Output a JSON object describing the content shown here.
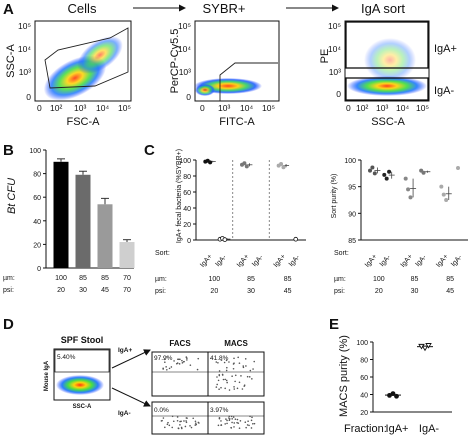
{
  "panel_labels": [
    "A",
    "B",
    "C",
    "D",
    "E"
  ],
  "panel_a": {
    "plots": [
      {
        "title": "Cells",
        "xlabel": "FSC-A",
        "ylabel": "SSC-A",
        "xticks": [
          "0",
          "10²",
          "10³",
          "10⁴",
          "10⁵"
        ],
        "yticks": [
          "0",
          "10³",
          "10⁴",
          "10⁵"
        ]
      },
      {
        "title": "SYBR+",
        "xlabel": "FITC-A",
        "ylabel": "PerCP-Cy5.5",
        "xticks": [
          "0",
          "10³",
          "10⁴",
          "10⁵"
        ],
        "yticks": [
          "0",
          "10³",
          "10⁴",
          "10⁵"
        ]
      },
      {
        "title": "IgA sort",
        "xlabel": "SSC-A",
        "ylabel": "PE",
        "xticks": [
          "0",
          "10²",
          "10³",
          "10⁴",
          "10⁵"
        ],
        "yticks": [
          "0",
          "10³",
          "10⁴",
          "10⁵"
        ],
        "gates": [
          "IgA+",
          "IgA-"
        ]
      }
    ]
  },
  "chart_data": [
    {
      "panel": "B",
      "type": "bar",
      "ylabel": "Bt CFU",
      "ylim": [
        0,
        100
      ],
      "yticks": [
        0,
        20,
        40,
        60,
        80,
        100
      ],
      "categories": [
        "1",
        "2",
        "3",
        "4"
      ],
      "row_labels": [
        "µm:",
        "psi:"
      ],
      "um": [
        "100",
        "85",
        "85",
        "70"
      ],
      "psi": [
        "20",
        "30",
        "45",
        "70"
      ],
      "values": [
        90,
        79,
        54,
        22
      ],
      "errors": [
        2.5,
        3,
        5,
        2
      ],
      "colors": [
        "#000000",
        "#6b6b6b",
        "#9a9a9a",
        "#cfcfcf"
      ]
    },
    {
      "panel": "C-left",
      "type": "scatter",
      "ylabel": "IgA+ fecal bacteria (%SYBR+)",
      "ylim": [
        0,
        100
      ],
      "yticks": [
        0,
        20,
        40,
        60,
        80,
        100
      ],
      "sort_label": "Sort:",
      "row_labels": [
        "µm:",
        "psi:"
      ],
      "groups": [
        {
          "um": "100",
          "psi": "20",
          "points": [
            {
              "sort": "IgA+",
              "values": [
                98,
                99,
                97
              ]
            },
            {
              "sort": "IgA-",
              "values": [
                1,
                2,
                0.5
              ]
            }
          ]
        },
        {
          "um": "85",
          "psi": "30",
          "points": [
            {
              "sort": "IgA+",
              "values": [
                94,
                96,
                92
              ]
            }
          ]
        },
        {
          "um": "85",
          "psi": "45",
          "points": [
            {
              "sort": "IgA+",
              "values": [
                93,
                95,
                91
              ]
            },
            {
              "sort": "IgA-",
              "values": [
                1
              ]
            }
          ]
        }
      ]
    },
    {
      "panel": "C-right",
      "type": "scatter",
      "ylabel": "Sort purity (%)",
      "ylim": [
        85,
        100
      ],
      "yticks": [
        85,
        90,
        95,
        100
      ],
      "sort_label": "Sort:",
      "row_labels": [
        "µm:",
        "psi:"
      ],
      "groups": [
        {
          "um": "100",
          "psi": "20",
          "points": [
            {
              "sort": "IgA+",
              "values": [
                98,
                98.6,
                97.5
              ],
              "color": "#555555"
            },
            {
              "sort": "IgA-",
              "values": [
                97.2,
                96.5,
                97.8
              ],
              "color": "#222222"
            }
          ]
        },
        {
          "um": "85",
          "psi": "30",
          "points": [
            {
              "sort": "IgA+",
              "values": [
                96.5,
                94.5,
                93
              ],
              "color": "#888888"
            },
            {
              "sort": "IgA-",
              "values": [
                98,
                97.6
              ],
              "color": "#777777"
            }
          ]
        },
        {
          "um": "85",
          "psi": "45",
          "points": [
            {
              "sort": "IgA+",
              "values": [
                95,
                93.5,
                92.5
              ],
              "color": "#aaaaaa"
            },
            {
              "sort": "IgA-",
              "values": [
                98.5
              ],
              "color": "#aaaaaa"
            }
          ]
        }
      ]
    },
    {
      "panel": "E",
      "type": "scatter",
      "ylabel": "MACS purity (%)",
      "ylim": [
        20,
        100
      ],
      "yticks": [
        20,
        40,
        60,
        80,
        100
      ],
      "xlabel": "Fraction:",
      "categories": [
        "IgA+",
        "IgA-"
      ],
      "values": [
        [
          39,
          41,
          38
        ],
        [
          95,
          93,
          96
        ]
      ]
    }
  ],
  "panel_d": {
    "source_title": "SPF Stool",
    "source_xlabel": "SSC-A",
    "source_ylabel": "Mouse IgA",
    "source_pct": "5.40%",
    "method_labels": [
      "FACS",
      "MACS"
    ],
    "fractions": [
      "IgA+",
      "IgA-"
    ],
    "percentages": {
      "facs_pos": "97.9%",
      "macs_pos": "41.8%",
      "facs_neg": "0.0%",
      "macs_neg": "3.97%"
    }
  }
}
